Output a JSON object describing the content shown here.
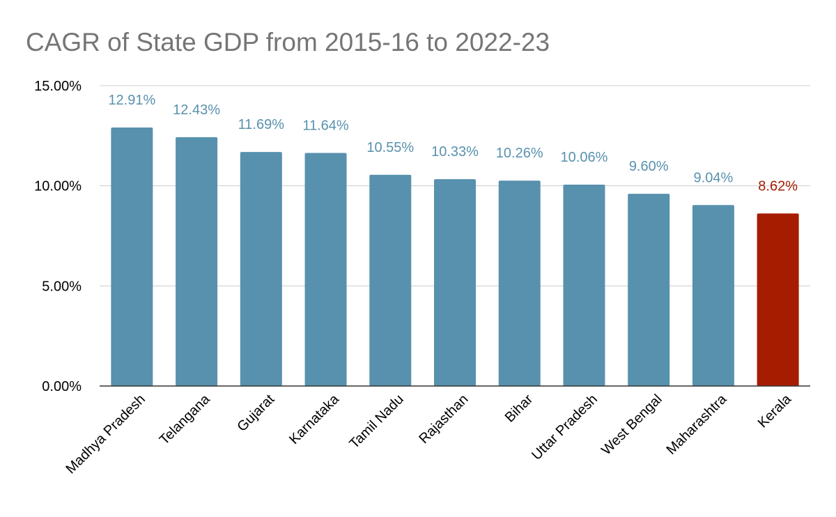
{
  "chart_data": {
    "type": "bar",
    "title": "CAGR of State GDP from 2015-16 to 2022-23",
    "xlabel": "",
    "ylabel": "",
    "categories": [
      "Madhya Pradesh",
      "Telangana",
      "Gujarat",
      "Karnataka",
      "Tamil Nadu",
      "Rajasthan",
      "Bihar",
      "Uttar Pradesh",
      "West Bengal",
      "Maharashtra",
      "Kerala"
    ],
    "values": [
      12.91,
      12.43,
      11.69,
      11.64,
      10.55,
      10.33,
      10.26,
      10.06,
      9.6,
      9.04,
      8.62
    ],
    "data_labels": [
      "12.91%",
      "12.43%",
      "11.69%",
      "11.64%",
      "10.55%",
      "10.33%",
      "10.26%",
      "10.06%",
      "9.60%",
      "9.04%",
      "8.62%"
    ],
    "ylim": [
      0,
      15
    ],
    "yticks": [
      0,
      5,
      10,
      15
    ],
    "ytick_labels": [
      "0.00%",
      "5.00%",
      "10.00%",
      "15.00%"
    ],
    "grid": true,
    "legend": "none",
    "colors": {
      "bar": "#5891ad",
      "highlight_bar": "#a61c00",
      "label": "#5891ad",
      "highlight_label": "#a61c00",
      "gridline": "#cccccc",
      "axis": "#333333",
      "title": "#757575"
    },
    "highlight_category": "Kerala"
  }
}
